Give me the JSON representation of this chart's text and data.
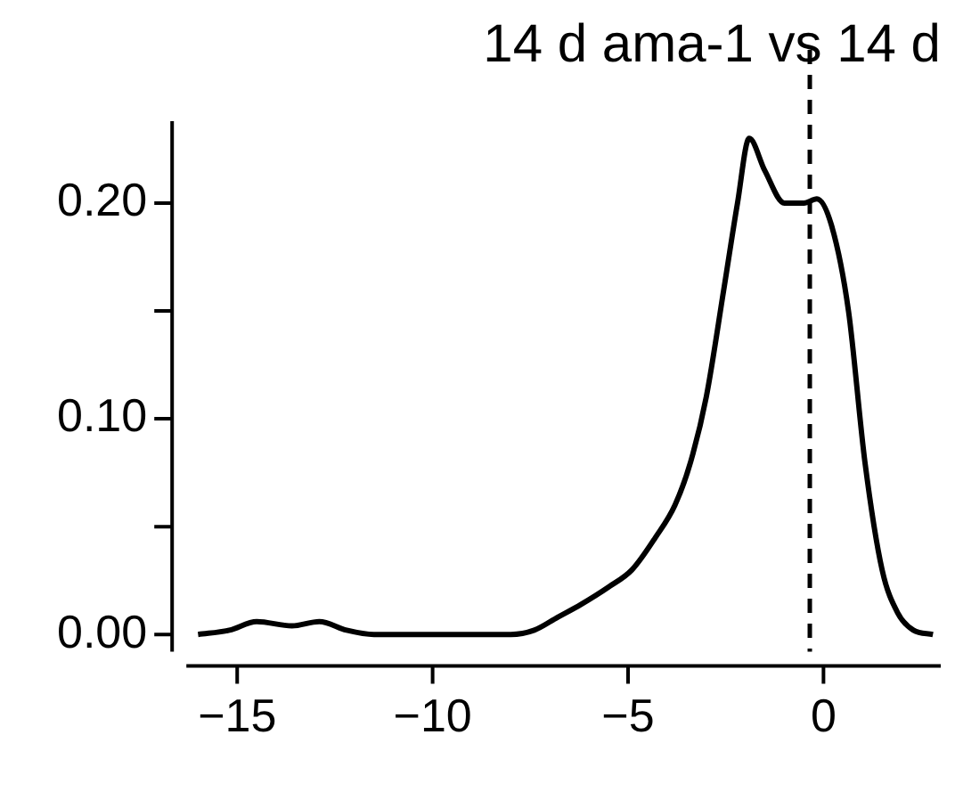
{
  "chart_data": {
    "type": "line",
    "title": "14 d ama-1 vs 14 d",
    "series": [
      {
        "color": "#000000",
        "x": [
          -16,
          -15.2,
          -14.5,
          -13.6,
          -12.9,
          -12.2,
          -11.5,
          -10,
          -8,
          -7.4,
          -6.8,
          -6.2,
          -5.5,
          -4.9,
          -4.3,
          -3.8,
          -3.4,
          -3.0,
          -2.55,
          -2.2,
          -1.9,
          -1.5,
          -1.0,
          -0.5,
          -0.17,
          0.2,
          0.64,
          1.06,
          1.5,
          1.9,
          2.3,
          2.8
        ],
        "values": [
          0,
          0.002,
          0.006,
          0.004,
          0.006,
          0.002,
          0,
          0,
          0,
          0.002,
          0.008,
          0.014,
          0.022,
          0.03,
          0.045,
          0.06,
          0.08,
          0.11,
          0.16,
          0.2,
          0.23,
          0.215,
          0.2,
          0.2,
          0.202,
          0.19,
          0.15,
          0.08,
          0.03,
          0.01,
          0.002,
          0
        ]
      }
    ],
    "xlim": [
      -16.3,
      3
    ],
    "ylim": [
      -0.008,
      0.238
    ],
    "xticks": [
      {
        "value": -15,
        "label": "−15"
      },
      {
        "value": -10,
        "label": "−10"
      },
      {
        "value": -5,
        "label": "−5"
      },
      {
        "value": 0,
        "label": "0"
      }
    ],
    "yticks": [
      {
        "value": 0,
        "label": "0.00"
      },
      {
        "value": 0.05,
        "label": null
      },
      {
        "value": 0.1,
        "label": "0.10"
      },
      {
        "value": 0.15,
        "label": null
      },
      {
        "value": 0.2,
        "label": "0.20"
      }
    ],
    "ref_lines": [
      {
        "axis": "x",
        "value": -0.35,
        "line_style": "dashed",
        "color": "#000000"
      }
    ],
    "grid": false,
    "legend": false,
    "marker": "none",
    "line_style": "solid"
  }
}
